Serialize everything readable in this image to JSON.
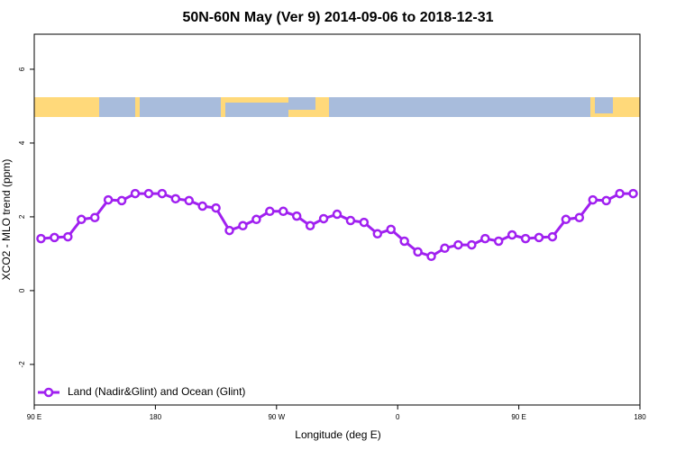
{
  "chart_data": {
    "type": "line",
    "title": "50N-60N May (Ver 9)   2014-09-06 to 2018-12-31",
    "x_label": "Longitude (deg E)",
    "y_label": "XCO2 - MLO trend (ppm)",
    "x": [
      95,
      105,
      115,
      125,
      135,
      145,
      155,
      165,
      175,
      185,
      195,
      205,
      215,
      225,
      235,
      245,
      255,
      265,
      275,
      285,
      295,
      305,
      315,
      325,
      335,
      345,
      355,
      365,
      375,
      385,
      395,
      405,
      415,
      425,
      435,
      445,
      455,
      465,
      475,
      485,
      495,
      505,
      515,
      525,
      535
    ],
    "series": [
      {
        "name": "Land (Nadir&Glint) and Ocean (Glint)",
        "color": "#a020f0",
        "values": [
          1.41,
          1.44,
          1.46,
          1.93,
          1.98,
          2.46,
          2.44,
          2.63,
          2.63,
          2.63,
          2.49,
          2.44,
          2.29,
          2.24,
          1.63,
          1.76,
          1.93,
          2.15,
          2.15,
          2.02,
          1.76,
          1.95,
          2.07,
          1.9,
          1.85,
          1.54,
          1.66,
          1.34,
          1.05,
          0.93,
          1.15,
          1.24,
          1.24,
          1.41,
          1.34,
          1.51,
          1.41,
          1.44,
          1.46,
          1.93,
          1.98,
          2.46,
          2.44,
          2.63,
          2.63
        ]
      }
    ],
    "xlim": [
      90,
      540
    ],
    "xticks": [
      {
        "value": 90,
        "label": "90 E"
      },
      180,
      {
        "value": 270,
        "label": "90 W"
      },
      {
        "value": 360,
        "label": "0"
      },
      {
        "value": 450,
        "label": "90 E"
      },
      {
        "value": 540,
        "label": "180"
      }
    ],
    "ylim": [
      -3.1,
      6.95
    ],
    "yticks": [
      -2,
      0,
      2,
      4,
      6
    ],
    "legend": "bottom-left"
  }
}
